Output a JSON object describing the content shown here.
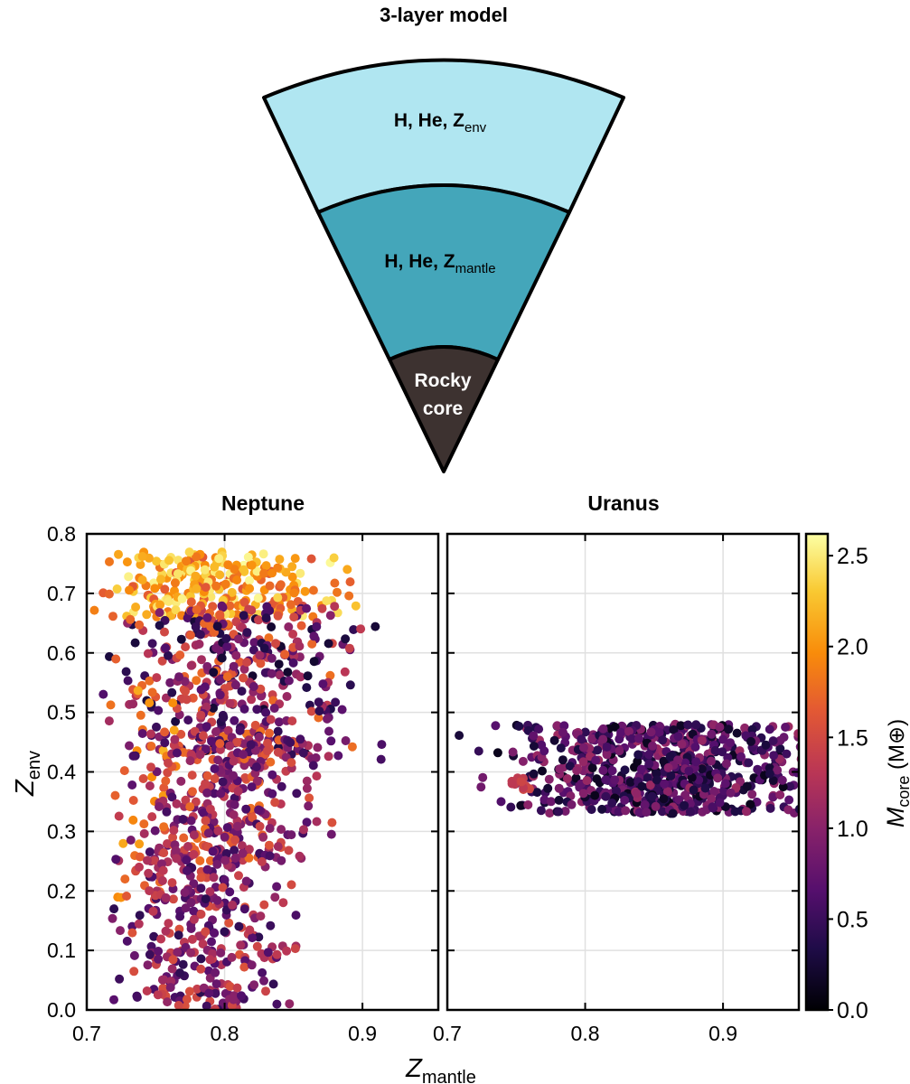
{
  "diagram": {
    "title": "3-layer model",
    "layers": [
      {
        "base": "H, He, Z",
        "sub": "env",
        "color": "#b0e6f1"
      },
      {
        "base": "H, He, Z",
        "sub": "mantle",
        "color": "#44a6ba"
      },
      {
        "line1": "Rocky",
        "line2": "core",
        "color": "#3d3230"
      }
    ]
  },
  "chart_data": {
    "type": "scatter",
    "xlabel": {
      "base": "Z",
      "sub": "mantle"
    },
    "ylabel": {
      "base": "Z",
      "sub": "env"
    },
    "xlim": [
      0.7,
      0.955
    ],
    "ylim": [
      0.0,
      0.8
    ],
    "xticks": [
      "0.7",
      "0.8",
      "0.9"
    ],
    "yticks": [
      "0.0",
      "0.1",
      "0.2",
      "0.3",
      "0.4",
      "0.5",
      "0.6",
      "0.7",
      "0.8"
    ],
    "grid": true,
    "colormap": "inferno",
    "colorbar": {
      "label": {
        "base": "M",
        "sub": "core",
        "unit": " (M⊕)"
      },
      "range": [
        0.0,
        2.62
      ],
      "ticks": [
        "0.0",
        "0.5",
        "1.0",
        "1.5",
        "2.0",
        "2.5"
      ]
    },
    "panels": [
      {
        "title": "Neptune",
        "clusters": [
          {
            "region": "envelope top",
            "x": [
              0.72,
              0.86
            ],
            "y": [
              0.66,
              0.77
            ],
            "color_range": [
              1.6,
              2.6
            ],
            "count": 260
          },
          {
            "region": "upper-middle",
            "x": [
              0.74,
              0.875
            ],
            "y": [
              0.42,
              0.68
            ],
            "color_range": [
              0.2,
              1.8
            ],
            "count": 420
          },
          {
            "region": "left fringe",
            "x": [
              0.72,
              0.76
            ],
            "y": [
              0.17,
              0.54
            ],
            "color_range": [
              1.6,
              2.2
            ],
            "count": 30
          },
          {
            "region": "middle",
            "x": [
              0.75,
              0.85
            ],
            "y": [
              0.25,
              0.47
            ],
            "color_range": [
              0.5,
              1.8
            ],
            "count": 300
          },
          {
            "region": "lower",
            "x": [
              0.74,
              0.83
            ],
            "y": [
              0.0,
              0.27
            ],
            "color_range": [
              0.4,
              1.6
            ],
            "count": 300
          }
        ]
      },
      {
        "title": "Uranus",
        "clusters": [
          {
            "region": "main band",
            "x": [
              0.77,
              0.94
            ],
            "y": [
              0.33,
              0.48
            ],
            "color_range": [
              0.1,
              1.15
            ],
            "count": 700
          },
          {
            "region": "left tail",
            "x": [
              0.745,
              0.765
            ],
            "y": [
              0.37,
              0.39
            ],
            "color_range": [
              1.3,
              1.5
            ],
            "count": 12
          }
        ]
      }
    ]
  }
}
